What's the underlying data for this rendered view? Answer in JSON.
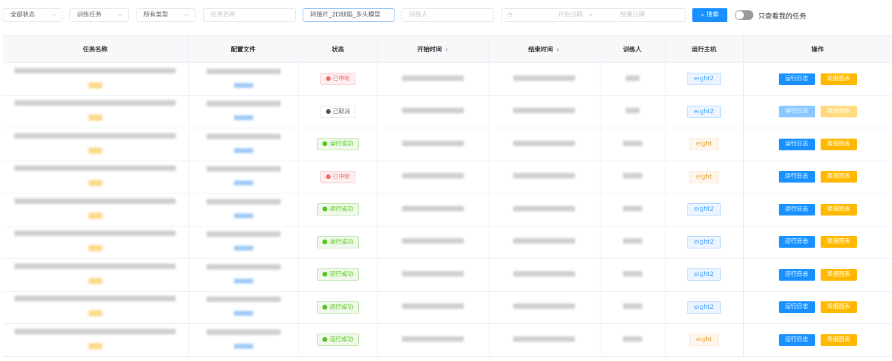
{
  "filters": {
    "status": "全部状态",
    "task_kind": "训练任务",
    "type": "所有类型",
    "task_name_placeholder": "任务名称",
    "model_value": "转接片_2D缺陷_多头模型",
    "trainer_placeholder": "训练人",
    "start_date_placeholder": "开始日期",
    "date_sep": "-",
    "end_date_placeholder": "结束日期",
    "search_label": "搜索",
    "only_mine_label": "只查看我的任务",
    "only_mine_on": false
  },
  "table": {
    "columns": [
      "任务名称",
      "配置文件",
      "状态",
      "开始时间",
      "结束时间",
      "训练人",
      "运行主机",
      "操作"
    ],
    "actions": {
      "log": "运行日志",
      "report": "简报图表"
    },
    "rows": [
      {
        "status": "已中断",
        "status_kind": "err",
        "host": "eight2",
        "disabled": false
      },
      {
        "status": "已取消",
        "status_kind": "cancel",
        "host": "eight2",
        "disabled": true
      },
      {
        "status": "运行成功",
        "status_kind": "ok",
        "host": "eight",
        "disabled": false
      },
      {
        "status": "已中断",
        "status_kind": "err",
        "host": "eight",
        "disabled": false
      },
      {
        "status": "运行成功",
        "status_kind": "ok",
        "host": "eight2",
        "disabled": false
      },
      {
        "status": "运行成功",
        "status_kind": "ok",
        "host": "eight2",
        "disabled": false
      },
      {
        "status": "运行成功",
        "status_kind": "ok",
        "host": "eight2",
        "disabled": false
      },
      {
        "status": "运行成功",
        "status_kind": "ok",
        "host": "eight2",
        "disabled": false
      },
      {
        "status": "运行成功",
        "status_kind": "ok",
        "host": "eight",
        "disabled": false
      }
    ]
  },
  "colors": {
    "primary": "#1890ff",
    "warning": "#ffb800",
    "error": "#f56c6c",
    "success": "#52c41a"
  }
}
